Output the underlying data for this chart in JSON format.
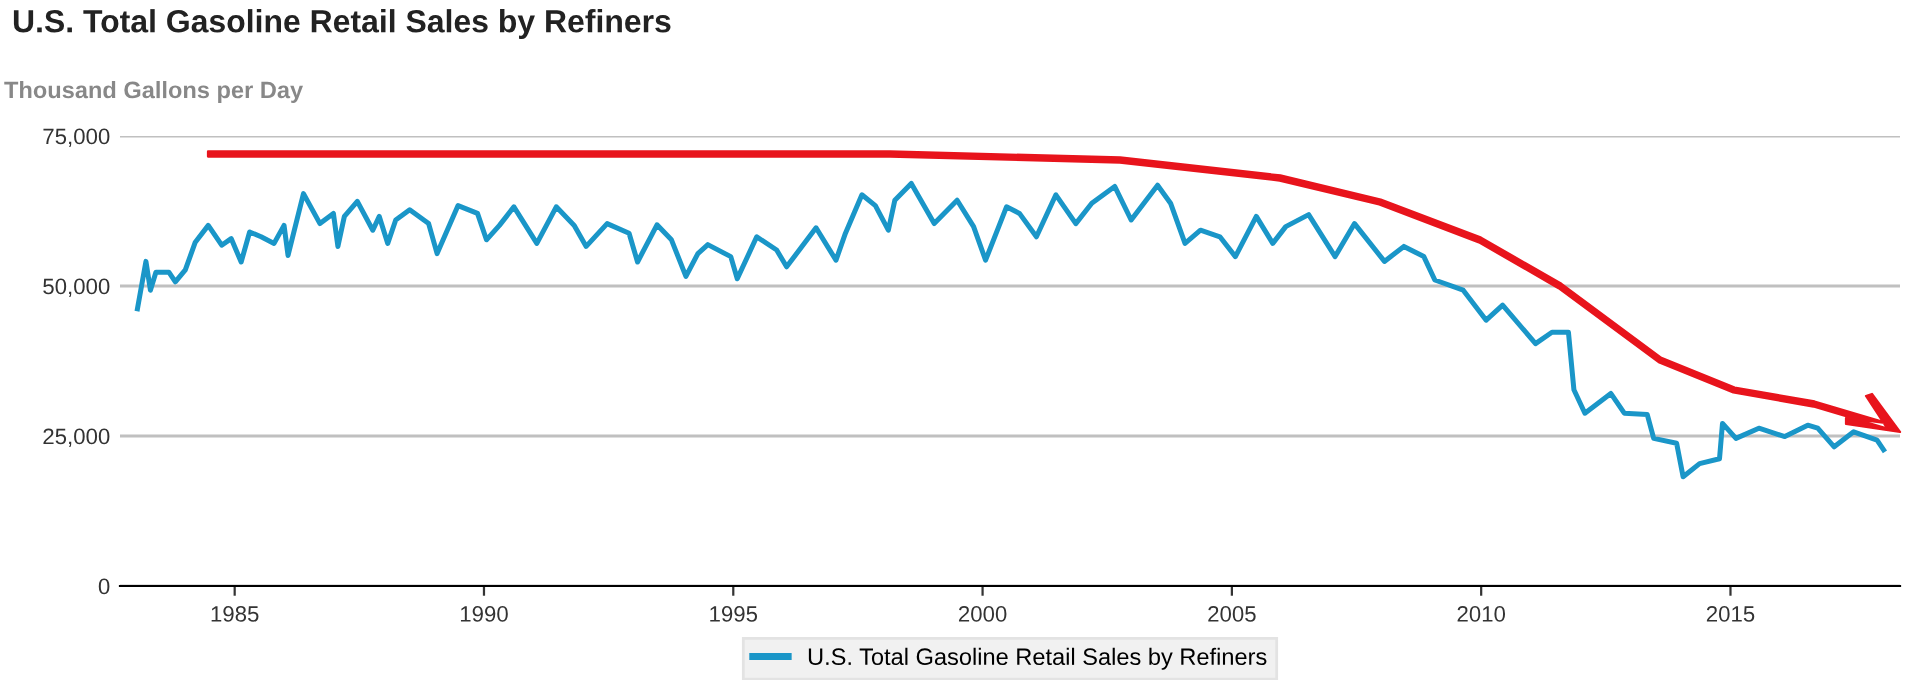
{
  "chart_data": {
    "type": "line",
    "title": "U.S. Total Gasoline Retail Sales by Refiners",
    "ylabel": "Thousand Gallons per Day",
    "x": [
      1983.05,
      1983.22,
      1983.31,
      1983.42,
      1983.68,
      1983.81,
      1984.01,
      1984.21,
      1984.47,
      1984.74,
      1984.93,
      1985.13,
      1985.3,
      1985.53,
      1985.79,
      1985.99,
      1986.07,
      1986.38,
      1986.71,
      1986.98,
      1987.07,
      1987.2,
      1987.46,
      1987.77,
      1987.9,
      1988.07,
      1988.23,
      1988.51,
      1988.89,
      1989.06,
      1989.48,
      1989.87,
      1990.05,
      1990.31,
      1990.6,
      1991.06,
      1991.45,
      1991.81,
      1992.05,
      1992.47,
      1992.91,
      1993.08,
      1993.47,
      1993.76,
      1994.05,
      1994.29,
      1994.49,
      1994.95,
      1995.08,
      1995.47,
      1995.87,
      1996.07,
      1996.66,
      1997.06,
      1997.25,
      1997.58,
      1997.85,
      1998.11,
      1998.24,
      1998.57,
      1999.03,
      1999.49,
      1999.82,
      2000.06,
      2000.48,
      2000.74,
      2001.08,
      2001.47,
      2001.87,
      2002.19,
      2002.65,
      2002.98,
      2003.51,
      2003.77,
      2004.06,
      2004.37,
      2004.76,
      2005.07,
      2005.49,
      2005.82,
      2006.08,
      2006.54,
      2007.07,
      2007.46,
      2008.06,
      2008.45,
      2008.85,
      2009.07,
      2009.64,
      2010.1,
      2010.43,
      2011.09,
      2011.42,
      2011.75,
      2011.86,
      2012.08,
      2012.6,
      2012.87,
      2013.33,
      2013.46,
      2013.92,
      2014.05,
      2014.38,
      2014.78,
      2014.84,
      2015.11,
      2015.57,
      2016.09,
      2016.55,
      2016.75,
      2017.08,
      2017.47,
      2017.94,
      2018.07
    ],
    "series": [
      {
        "name": "U.S. Total Gasoline Retail Sales by Refiners",
        "color": "#1a96c8",
        "values": [
          46200,
          54100,
          49300,
          52300,
          52300,
          50700,
          52700,
          57300,
          60100,
          56800,
          57900,
          54000,
          59000,
          58200,
          57100,
          60100,
          55100,
          65400,
          60400,
          62100,
          56600,
          61600,
          64100,
          59300,
          61600,
          57100,
          61000,
          62700,
          60400,
          55400,
          63400,
          62100,
          57700,
          60100,
          63200,
          57100,
          63200,
          60100,
          56600,
          60400,
          58800,
          54000,
          60200,
          57700,
          51600,
          55400,
          56900,
          54900,
          51200,
          58200,
          56000,
          53200,
          59700,
          54300,
          58800,
          65200,
          63400,
          59300,
          64300,
          67100,
          60400,
          64300,
          59900,
          54300,
          63200,
          62100,
          58200,
          65200,
          60400,
          63800,
          66600,
          61000,
          66800,
          63800,
          57100,
          59300,
          58200,
          54900,
          61600,
          57100,
          59900,
          61900,
          54900,
          60400,
          54100,
          56600,
          54900,
          51000,
          49300,
          44300,
          46800,
          40400,
          42300,
          42300,
          32700,
          28800,
          32100,
          28800,
          28600,
          24600,
          23800,
          18200,
          20400,
          21200,
          27100,
          24600,
          26300,
          24900,
          26800,
          26300,
          23200,
          25700,
          24300,
          22700
        ]
      }
    ],
    "xlim": [
      1982.7,
      2018.4
    ],
    "xticks": [
      1985,
      1990,
      1995,
      2000,
      2005,
      2010,
      2015
    ],
    "ylim": [
      0,
      75000
    ],
    "yticks": [
      0,
      {
        "value": 25000,
        "label": "25,000"
      },
      {
        "value": 50000,
        "label": "50,000"
      },
      {
        "value": 75000,
        "label": "75,000"
      }
    ],
    "grid": "y",
    "legend": "bottom"
  }
}
